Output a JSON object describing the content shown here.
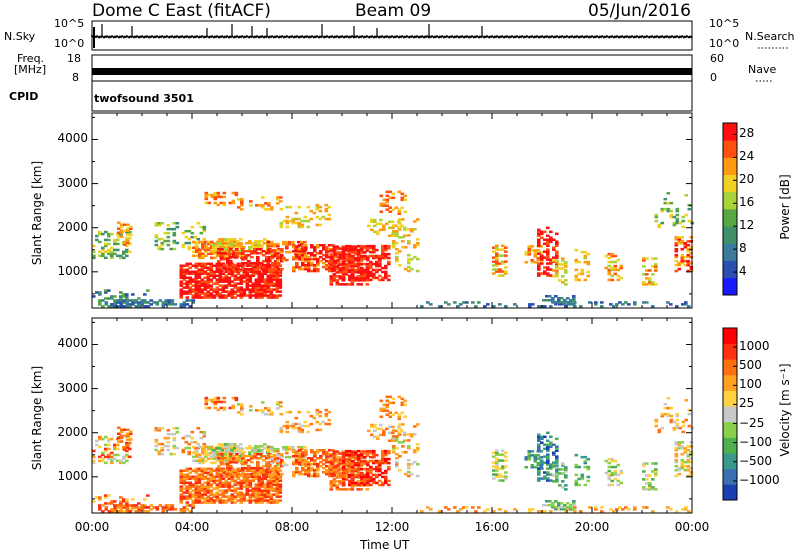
{
  "header": {
    "radar": "Dome C East (fitACF)",
    "beam": "Beam 09",
    "date": "05/Jun/2016"
  },
  "status_panels": {
    "nsky_label": "N.Sky",
    "nsky_ticks": [
      "10^5",
      "10^0"
    ],
    "nsearch_label": "N.Search",
    "nsearch_ticks": [
      "10^5",
      "10^0"
    ],
    "freq_label": "Freq.",
    "freq_unit": "[MHz]",
    "freq_ticks": [
      "18",
      "8"
    ],
    "nave_label": "Nave",
    "nave_ticks": [
      "60",
      "0"
    ],
    "cpid_label": "CPID",
    "cpid_value": "twofsound 3501"
  },
  "chart_data": [
    {
      "type": "heatmap",
      "name": "power",
      "ylabel": "Slant Range [km]",
      "xlabel": "Time UT",
      "x_ticks": [
        "00:00",
        "04:00",
        "08:00",
        "12:00",
        "16:00",
        "20:00",
        "00:00"
      ],
      "y_ticks": [
        1000,
        2000,
        3000,
        4000
      ],
      "ylim": [
        180,
        4600
      ],
      "xlim_hours": [
        0,
        24
      ],
      "colorbar": {
        "label": "Power [dB]",
        "ticks": [
          "4",
          "8",
          "12",
          "16",
          "20",
          "24",
          "28"
        ],
        "range": [
          0,
          30
        ],
        "colors": [
          "#1a1aff",
          "#2a4fb0",
          "#3a7a9a",
          "#3f8f6a",
          "#57a845",
          "#a6d23a",
          "#f0d020",
          "#ff9a10",
          "#ff5010",
          "#ff1010"
        ]
      }
    },
    {
      "type": "heatmap",
      "name": "velocity",
      "ylabel": "Slant Range [km]",
      "xlabel": "Time UT",
      "x_ticks": [
        "00:00",
        "04:00",
        "08:00",
        "12:00",
        "16:00",
        "20:00",
        "00:00"
      ],
      "y_ticks": [
        1000,
        2000,
        3000,
        4000
      ],
      "ylim": [
        180,
        4600
      ],
      "xlim_hours": [
        0,
        24
      ],
      "colorbar": {
        "label": "Velocity [m s⁻¹]",
        "ticks": [
          "1000",
          "500",
          "100",
          "25",
          "−25",
          "−100",
          "−500",
          "−1000"
        ],
        "colors": [
          "#1a3fb0",
          "#3a70b0",
          "#3a9a8a",
          "#4fb050",
          "#8ad04a",
          "#c8c8c8",
          "#ffd040",
          "#ffa020",
          "#ff7010",
          "#ff3010",
          "#ff0000"
        ]
      }
    }
  ]
}
